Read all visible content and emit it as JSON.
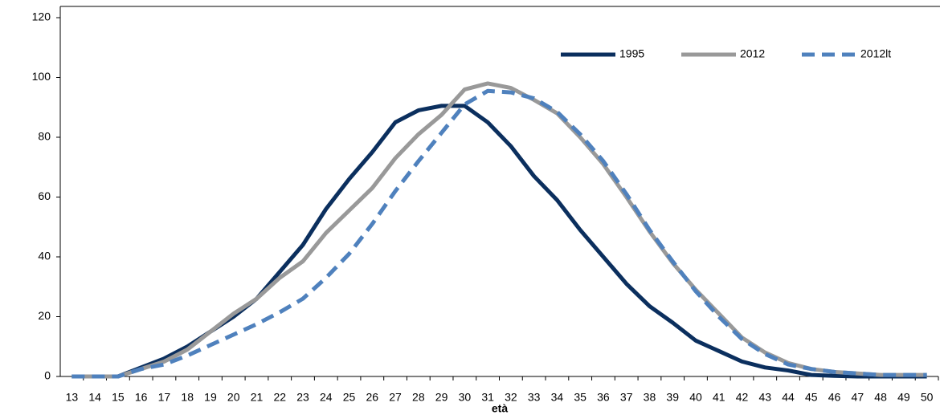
{
  "chart_data": {
    "type": "line",
    "x_label": "età",
    "categories": [
      "13",
      "14",
      "15",
      "16",
      "17",
      "18",
      "19",
      "20",
      "21",
      "22",
      "23",
      "24",
      "25",
      "26",
      "27",
      "28",
      "29",
      "30",
      "31",
      "32",
      "33",
      "34",
      "35",
      "36",
      "37",
      "38",
      "39",
      "40",
      "41",
      "42",
      "43",
      "44",
      "45",
      "46",
      "47",
      "48",
      "49",
      "50"
    ],
    "series": [
      {
        "name": "1995",
        "color": "#0b2f5e",
        "dashed": false,
        "values": [
          0,
          0,
          0,
          3,
          6,
          10,
          15,
          20,
          26,
          35,
          44,
          56,
          66,
          75,
          85,
          89,
          90.5,
          90.5,
          85,
          77,
          67,
          59,
          49,
          40,
          31,
          23.5,
          18,
          12,
          8.5,
          5,
          3,
          2,
          0.5,
          0.2,
          0,
          0,
          0,
          0
        ]
      },
      {
        "name": "2012",
        "color": "#999999",
        "dashed": false,
        "values": [
          0,
          0,
          0,
          2.5,
          5,
          9,
          15,
          21,
          26,
          33,
          38.5,
          48,
          55.5,
          63,
          73,
          81,
          87.5,
          96,
          98,
          96.5,
          92.5,
          88,
          80,
          71,
          60,
          48.5,
          38,
          29,
          21,
          13,
          8,
          4.5,
          2.5,
          1.5,
          1,
          0.5,
          0.5,
          0.5
        ]
      },
      {
        "name": "2012lt",
        "color": "#4f81bd",
        "dashed": true,
        "values": [
          0,
          0,
          0,
          2.5,
          4,
          7,
          10.5,
          14,
          17.5,
          21.5,
          26,
          33,
          41,
          51,
          62,
          72,
          81.5,
          91,
          95.5,
          95,
          93,
          88.5,
          81,
          72,
          61,
          49,
          38.5,
          28.5,
          20,
          12.5,
          7.5,
          4,
          2.5,
          1.5,
          1,
          0.5,
          0.5,
          0.5
        ]
      }
    ],
    "ylim": [
      0,
      120
    ],
    "yticks": [
      0,
      20,
      40,
      60,
      80,
      100,
      120
    ],
    "legend": "upper right",
    "grid": false
  }
}
